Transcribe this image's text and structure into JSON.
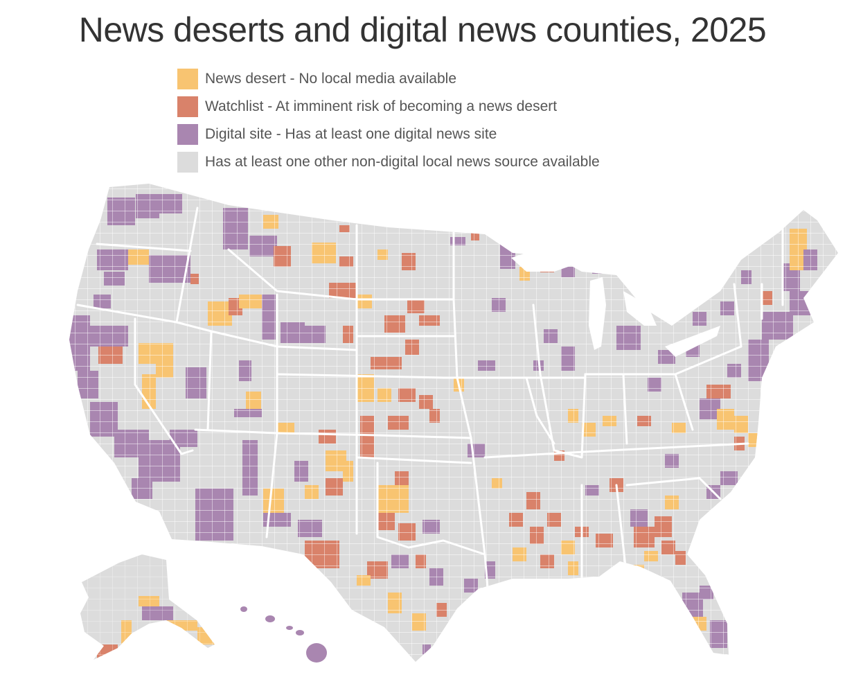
{
  "title": "News deserts and digital news counties, 2025",
  "legend": [
    {
      "key": "desert",
      "label": "News desert - No local media available",
      "color": "#F8C471"
    },
    {
      "key": "watch",
      "label": "Watchlist - At imminent risk of becoming a news desert",
      "color": "#D9826A"
    },
    {
      "key": "digital",
      "label": "Digital site - Has at least one digital news site",
      "color": "#A986B0"
    },
    {
      "key": "other",
      "label": "Has at least one other non-digital local news source available",
      "color": "#DCDCDC"
    }
  ],
  "map": {
    "regions": [
      "contiguous-us",
      "alaska",
      "hawaii"
    ]
  }
}
